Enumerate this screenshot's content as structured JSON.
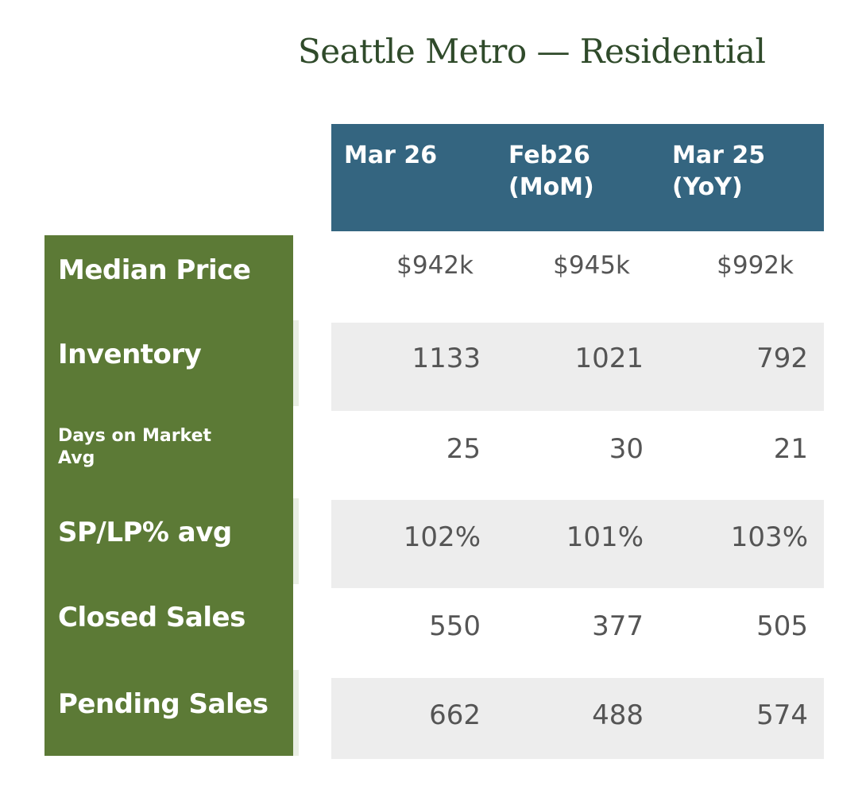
{
  "title": "Seattle Metro — Residential",
  "columns": [
    {
      "line1": "Mar 26",
      "line2": ""
    },
    {
      "line1": "Feb26",
      "line2": "(MoM)"
    },
    {
      "line1": "Mar 25",
      "line2": "(YoY)"
    }
  ],
  "rows": [
    {
      "label": "Median Price",
      "values": [
        "$942k",
        "$945k",
        "$992k"
      ]
    },
    {
      "label": "Inventory",
      "values": [
        "1133",
        "1021",
        "792"
      ]
    },
    {
      "label": "Days on Market Avg",
      "label_line1": "Days on Market",
      "label_line2": "Avg",
      "values": [
        "25",
        "30",
        "21"
      ]
    },
    {
      "label": "SP/LP% avg",
      "values": [
        "102%",
        "101%",
        "103%"
      ]
    },
    {
      "label": "Closed Sales",
      "values": [
        "550",
        "377",
        "505"
      ]
    },
    {
      "label": "Pending Sales",
      "values": [
        "662",
        "488",
        "574"
      ]
    }
  ],
  "colors": {
    "header_bg": "#346580",
    "label_bg": "#5c7a36",
    "title_text": "#2f4a2a",
    "row_shade": "#ededed",
    "value_text": "#555555"
  }
}
